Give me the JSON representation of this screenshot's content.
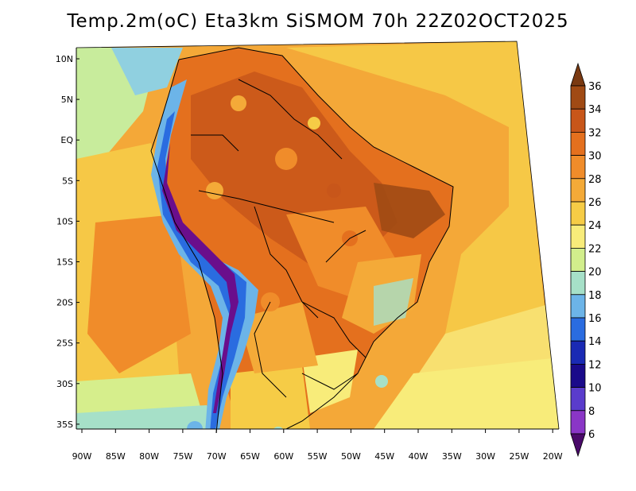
{
  "title": "Temp.2m(oC) Eta3km SiSMOM 70h 22Z02OCT2025",
  "map": {
    "variable": "2 m air temperature",
    "units": "oC",
    "lat_labels": [
      "10N",
      "5N",
      "EQ",
      "5S",
      "10S",
      "15S",
      "20S",
      "25S",
      "30S",
      "35S"
    ],
    "lon_labels": [
      "90W",
      "85W",
      "80W",
      "75W",
      "70W",
      "65W",
      "60W",
      "55W",
      "50W",
      "45W",
      "40W",
      "35W",
      "30W",
      "25W",
      "20W"
    ]
  },
  "colorbar": {
    "labels": [
      "36",
      "34",
      "32",
      "30",
      "28",
      "26",
      "24",
      "22",
      "20",
      "18",
      "16",
      "14",
      "12",
      "10",
      "8",
      "6"
    ],
    "colors": [
      "#7a3a12",
      "#a04a14",
      "#c8561a",
      "#e4701e",
      "#f08c2a",
      "#f4aa38",
      "#f6cc46",
      "#f8ec7a",
      "#d2ee8c",
      "#a6e0c8",
      "#6cb4e8",
      "#2a6ce0",
      "#1a2ab4",
      "#1a0a8a",
      "#5a3ccc",
      "#8a36c6",
      "#6a0e8c",
      "#4a0a6a"
    ]
  }
}
